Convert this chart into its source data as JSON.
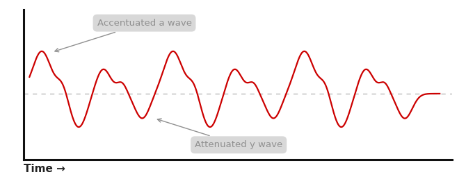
{
  "background_color": "#ffffff",
  "line_color": "#cc0000",
  "dashed_line_color": "#b0b0b0",
  "xlabel": "Time →",
  "xlabel_fontsize": 11,
  "xlabel_fontweight": "bold",
  "annotation_box_color": "#d4d4d4",
  "annotation_text_color": "#909090",
  "annotation1_text": "Accentuated a wave",
  "annotation2_text": "Attenuated y wave",
  "figsize": [
    6.7,
    2.81
  ],
  "dpi": 100
}
